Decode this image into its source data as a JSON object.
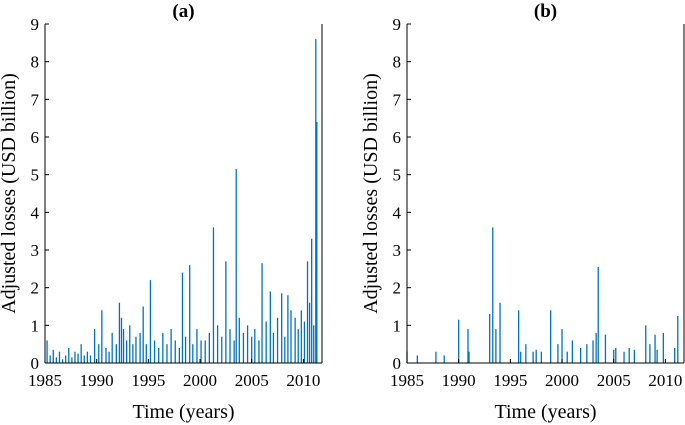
{
  "colors": {
    "series": "#0072BD",
    "axes": "#000000"
  },
  "chart_data": [
    {
      "type": "bar",
      "title": "(a)",
      "xlabel": "Time (years)",
      "ylabel": "Adjusted losses (USD billion)",
      "xlim": [
        1985,
        2011.8
      ],
      "ylim": [
        0,
        9
      ],
      "xticks": [
        1985,
        1990,
        1995,
        2000,
        2005,
        2010
      ],
      "yticks": [
        0,
        1,
        2,
        3,
        4,
        5,
        6,
        7,
        8,
        9
      ],
      "grid": false,
      "legend": "none",
      "x": [
        1985.2,
        1985.5,
        1985.8,
        1986.1,
        1986.4,
        1986.7,
        1987.0,
        1987.3,
        1987.6,
        1987.9,
        1988.2,
        1988.5,
        1988.8,
        1989.1,
        1989.4,
        1989.8,
        1990.2,
        1990.5,
        1990.9,
        1991.2,
        1991.5,
        1991.9,
        1992.2,
        1992.4,
        1992.6,
        1992.9,
        1993.2,
        1993.5,
        1993.8,
        1994.2,
        1994.5,
        1994.8,
        1995.2,
        1995.6,
        1996.0,
        1996.4,
        1996.8,
        1997.2,
        1997.6,
        1998.0,
        1998.3,
        1998.6,
        1999.0,
        1999.3,
        1999.7,
        2000.1,
        2000.5,
        2000.9,
        2001.3,
        2001.7,
        2002.1,
        2002.5,
        2002.9,
        2003.3,
        2003.5,
        2003.8,
        2004.2,
        2004.6,
        2005.0,
        2005.3,
        2005.7,
        2006.0,
        2006.4,
        2006.8,
        2007.1,
        2007.5,
        2007.9,
        2008.2,
        2008.5,
        2008.8,
        2009.2,
        2009.5,
        2009.8,
        2010.1,
        2010.4,
        2010.6,
        2010.8,
        2011.0,
        2011.2,
        2011.3
      ],
      "values": [
        0.6,
        0.2,
        0.35,
        0.15,
        0.3,
        0.1,
        0.2,
        0.4,
        0.15,
        0.3,
        0.25,
        0.5,
        0.2,
        0.3,
        0.2,
        0.9,
        0.5,
        1.4,
        0.4,
        0.3,
        0.8,
        0.5,
        1.6,
        1.2,
        0.9,
        0.6,
        1.0,
        0.5,
        0.7,
        0.8,
        1.5,
        0.5,
        2.2,
        0.6,
        0.4,
        0.8,
        0.5,
        0.9,
        0.6,
        0.4,
        2.4,
        0.7,
        2.6,
        0.5,
        0.9,
        0.6,
        0.6,
        0.8,
        3.6,
        1.0,
        0.7,
        2.7,
        0.9,
        0.6,
        5.15,
        1.2,
        0.8,
        1.0,
        0.7,
        0.9,
        0.6,
        2.65,
        1.1,
        1.9,
        0.8,
        1.2,
        1.85,
        0.7,
        1.8,
        1.4,
        1.2,
        0.9,
        1.4,
        1.1,
        2.7,
        1.6,
        3.3,
        1.0,
        8.6,
        6.4
      ]
    },
    {
      "type": "bar",
      "title": "(b)",
      "xlabel": "Time (years)",
      "ylabel": "Adjusted losses (USD billion)",
      "xlim": [
        1985,
        2011.8
      ],
      "ylim": [
        0,
        9
      ],
      "xticks": [
        1985,
        1990,
        1995,
        2000,
        2005,
        2010
      ],
      "yticks": [
        0,
        1,
        2,
        3,
        4,
        5,
        6,
        7,
        8,
        9
      ],
      "grid": false,
      "legend": "none",
      "x": [
        1985.0,
        1986.0,
        1987.8,
        1988.6,
        1990.0,
        1990.9,
        1991.0,
        1993.0,
        1993.3,
        1993.6,
        1994.0,
        1995.8,
        1996.0,
        1996.5,
        1997.2,
        1997.5,
        1998.0,
        1998.9,
        1999.6,
        2000.0,
        2000.5,
        2001.0,
        2001.8,
        2002.4,
        2003.0,
        2003.3,
        2003.5,
        2004.2,
        2005.0,
        2005.2,
        2006.0,
        2006.5,
        2007.0,
        2008.1,
        2008.5,
        2009.0,
        2009.2,
        2009.8,
        2010.9,
        2011.2
      ],
      "values": [
        0.3,
        0.2,
        0.3,
        0.2,
        1.15,
        0.9,
        0.3,
        1.3,
        3.6,
        0.9,
        1.6,
        1.4,
        0.3,
        0.5,
        0.3,
        0.35,
        0.3,
        1.4,
        0.5,
        0.9,
        0.3,
        0.6,
        0.4,
        0.5,
        0.6,
        0.8,
        2.55,
        0.75,
        0.35,
        0.4,
        0.3,
        0.4,
        0.35,
        1.0,
        0.5,
        0.75,
        0.35,
        0.8,
        0.4,
        1.25
      ]
    }
  ]
}
